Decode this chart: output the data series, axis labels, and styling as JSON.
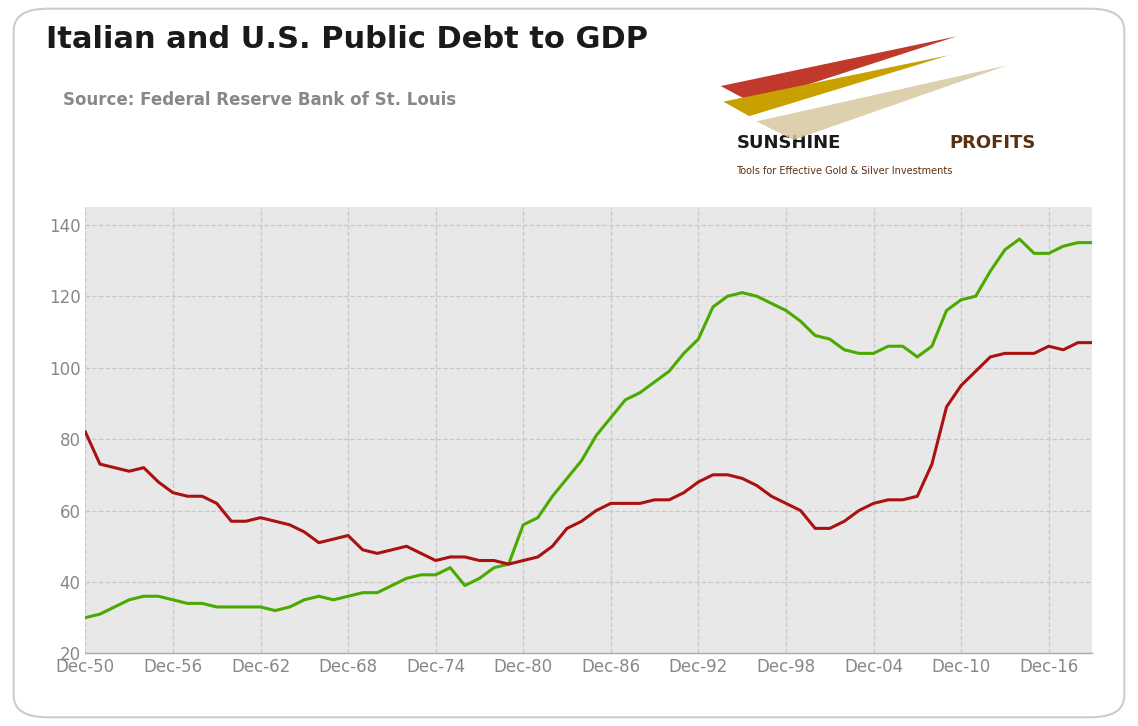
{
  "title": "Italian and U.S. Public Debt to GDP",
  "source": "Source: Federal Reserve Bank of St. Louis",
  "background_color": "#e8e8e8",
  "outer_background": "#ffffff",
  "italy_color": "#4aaa00",
  "us_color": "#aa1111",
  "ylim": [
    20,
    145
  ],
  "yticks": [
    20,
    40,
    60,
    80,
    100,
    120,
    140
  ],
  "xtick_labels": [
    "Dec-50",
    "Dec-56",
    "Dec-62",
    "Dec-68",
    "Dec-74",
    "Dec-80",
    "Dec-86",
    "Dec-92",
    "Dec-98",
    "Dec-04",
    "Dec-10",
    "Dec-16"
  ],
  "xtick_years": [
    1950,
    1956,
    1962,
    1968,
    1974,
    1980,
    1986,
    1992,
    1998,
    2004,
    2010,
    2016
  ],
  "italy_years": [
    1950,
    1951,
    1952,
    1953,
    1954,
    1955,
    1956,
    1957,
    1958,
    1959,
    1960,
    1961,
    1962,
    1963,
    1964,
    1965,
    1966,
    1967,
    1968,
    1969,
    1970,
    1971,
    1972,
    1973,
    1974,
    1975,
    1976,
    1977,
    1978,
    1979,
    1980,
    1981,
    1982,
    1983,
    1984,
    1985,
    1986,
    1987,
    1988,
    1989,
    1990,
    1991,
    1992,
    1993,
    1994,
    1995,
    1996,
    1997,
    1998,
    1999,
    2000,
    2001,
    2002,
    2003,
    2004,
    2005,
    2006,
    2007,
    2008,
    2009,
    2010,
    2011,
    2012,
    2013,
    2014,
    2015,
    2016,
    2017,
    2018,
    2019
  ],
  "italy_values": [
    30,
    31,
    33,
    35,
    36,
    36,
    35,
    34,
    34,
    33,
    33,
    33,
    33,
    32,
    33,
    35,
    36,
    35,
    36,
    37,
    37,
    39,
    41,
    42,
    42,
    44,
    39,
    41,
    44,
    45,
    56,
    58,
    64,
    69,
    74,
    81,
    86,
    91,
    93,
    96,
    99,
    104,
    108,
    117,
    120,
    121,
    120,
    118,
    116,
    113,
    109,
    108,
    105,
    104,
    104,
    106,
    106,
    103,
    106,
    116,
    119,
    120,
    127,
    133,
    136,
    132,
    132,
    134,
    135,
    135
  ],
  "us_years": [
    1950,
    1951,
    1952,
    1953,
    1954,
    1955,
    1956,
    1957,
    1958,
    1959,
    1960,
    1961,
    1962,
    1963,
    1964,
    1965,
    1966,
    1967,
    1968,
    1969,
    1970,
    1971,
    1972,
    1973,
    1974,
    1975,
    1976,
    1977,
    1978,
    1979,
    1980,
    1981,
    1982,
    1983,
    1984,
    1985,
    1986,
    1987,
    1988,
    1989,
    1990,
    1991,
    1992,
    1993,
    1994,
    1995,
    1996,
    1997,
    1998,
    1999,
    2000,
    2001,
    2002,
    2003,
    2004,
    2005,
    2006,
    2007,
    2008,
    2009,
    2010,
    2011,
    2012,
    2013,
    2014,
    2015,
    2016,
    2017,
    2018,
    2019
  ],
  "us_values": [
    82,
    73,
    72,
    71,
    72,
    68,
    65,
    64,
    64,
    62,
    57,
    57,
    58,
    57,
    56,
    54,
    51,
    52,
    53,
    49,
    48,
    49,
    50,
    48,
    46,
    47,
    47,
    46,
    46,
    45,
    46,
    47,
    50,
    55,
    57,
    60,
    62,
    62,
    62,
    63,
    63,
    65,
    68,
    70,
    70,
    69,
    67,
    64,
    62,
    60,
    55,
    55,
    57,
    60,
    62,
    63,
    63,
    64,
    73,
    89,
    95,
    99,
    103,
    104,
    104,
    104,
    106,
    105,
    107,
    107
  ],
  "title_fontsize": 22,
  "source_fontsize": 12,
  "tick_fontsize": 12,
  "logo_sunshine_color": "#1a1a1a",
  "logo_profits_color": "#5a3010",
  "logo_subtitle_color": "#5a3010",
  "grid_color": "#c8c8c8",
  "tick_color": "#888888"
}
